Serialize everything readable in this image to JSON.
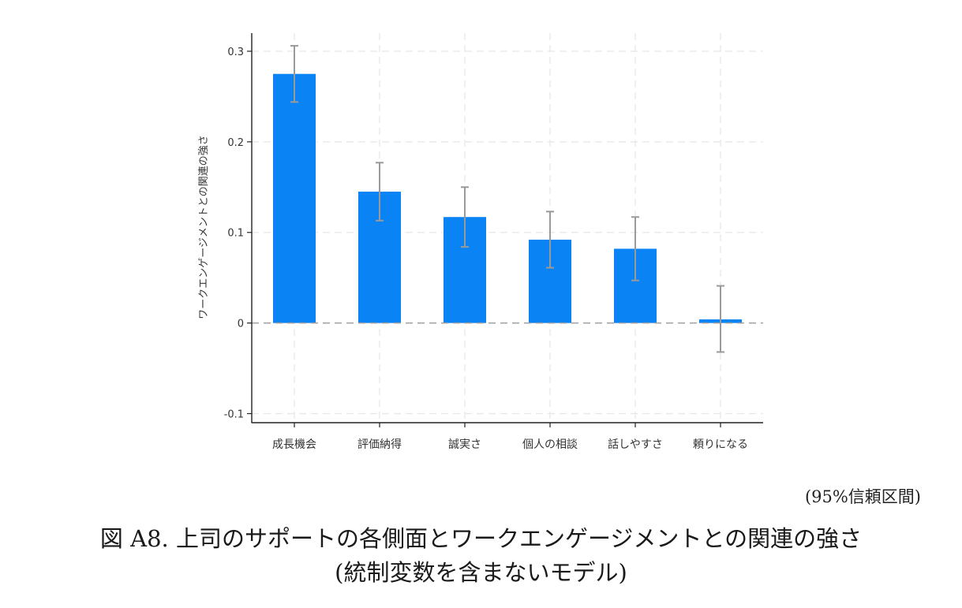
{
  "chart_data": {
    "type": "bar",
    "categories": [
      "成長機会",
      "評価納得",
      "誠実さ",
      "個人の相談",
      "話しやすさ",
      "頼りになる"
    ],
    "values": [
      0.275,
      0.145,
      0.117,
      0.092,
      0.082,
      0.004
    ],
    "error_low": [
      0.244,
      0.113,
      0.084,
      0.061,
      0.047,
      -0.032
    ],
    "error_high": [
      0.306,
      0.177,
      0.15,
      0.123,
      0.117,
      0.041
    ],
    "ylabel": "ワークエンゲージメントとの関連の強さ",
    "ylim": [
      -0.11,
      0.32
    ],
    "yticks": [
      -0.1,
      0,
      0.1,
      0.2,
      0.3
    ],
    "ytick_labels": [
      "-0.1",
      "0",
      "0.1",
      "0.2",
      "0.3"
    ],
    "grid": true,
    "bar_color": "#0a84f5",
    "error_color": "#9a9a9a"
  },
  "note": "(95%信頼区間)",
  "caption": {
    "line1": "図 A8.  上司のサポートの各側面とワークエンゲージメントとの関連の強さ",
    "line2": "(統制変数を含まないモデル)"
  }
}
